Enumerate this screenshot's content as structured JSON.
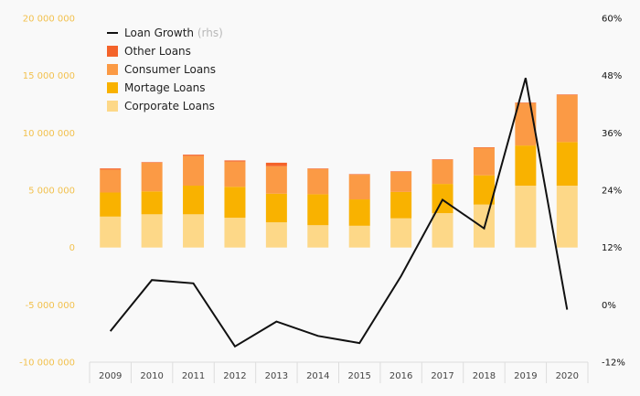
{
  "chart_data": {
    "type": "bar",
    "subtype": "stacked bar with line on secondary axis",
    "categories": [
      "2009",
      "2010",
      "2011",
      "2012",
      "2013",
      "2014",
      "2015",
      "2016",
      "2017",
      "2018",
      "2019",
      "2020"
    ],
    "series": [
      {
        "name": "Corporate Loans",
        "type": "bar",
        "axis": "left",
        "color": "#fdd888",
        "values": [
          2700000,
          2900000,
          2900000,
          2600000,
          2200000,
          1950000,
          1900000,
          2550000,
          3000000,
          3750000,
          5400000,
          5400000
        ]
      },
      {
        "name": "Mortage Loans",
        "type": "bar",
        "axis": "left",
        "color": "#f9b200",
        "values": [
          2100000,
          2000000,
          2500000,
          2700000,
          2500000,
          2700000,
          2300000,
          2300000,
          2550000,
          2550000,
          3500000,
          3800000
        ]
      },
      {
        "name": "Consumer Loans",
        "type": "bar",
        "axis": "left",
        "color": "#fb9a45",
        "values": [
          2000000,
          2500000,
          2600000,
          2200000,
          2400000,
          2200000,
          2150000,
          1750000,
          2100000,
          2400000,
          3700000,
          4100000
        ]
      },
      {
        "name": "Other Loans",
        "type": "bar",
        "axis": "left",
        "color": "#f4632a",
        "values": [
          100000,
          50000,
          100000,
          100000,
          300000,
          50000,
          50000,
          50000,
          50000,
          50000,
          50000,
          50000
        ]
      },
      {
        "name": "Loan Growth",
        "name_suffix": "(rhs)",
        "type": "line",
        "axis": "right",
        "color": "#111111",
        "values": [
          -5.5,
          5.2,
          4.5,
          -8.7,
          -3.5,
          -6.5,
          -8.0,
          6.0,
          22.0,
          16.0,
          47.5,
          -1.0
        ]
      }
    ],
    "y_left": {
      "min": -10000000,
      "max": 20000000,
      "ticks": [
        20000000,
        15000000,
        10000000,
        5000000,
        0,
        -5000000,
        -10000000
      ],
      "tick_labels": [
        "20 000 000",
        "15 000 000",
        "10 000 000",
        "5 000 000",
        "0",
        "-5 000 000",
        "-10 000 000"
      ]
    },
    "y_right": {
      "min": -12,
      "max": 60,
      "ticks": [
        60,
        48,
        36,
        24,
        12,
        0,
        -12
      ],
      "tick_labels": [
        "60%",
        "48%",
        "36%",
        "24%",
        "12%",
        "0%",
        "-12%"
      ]
    },
    "legend": {
      "placement": "top-left",
      "order": [
        "Loan Growth",
        "Other Loans",
        "Consumer Loans",
        "Mortage Loans",
        "Corporate Loans"
      ]
    },
    "grid": false,
    "colors": {
      "left_axis_labels": "#f2c14e",
      "right_axis_labels": "#111111",
      "baseline": "#dddddd",
      "background": "#f9f9f9"
    }
  }
}
